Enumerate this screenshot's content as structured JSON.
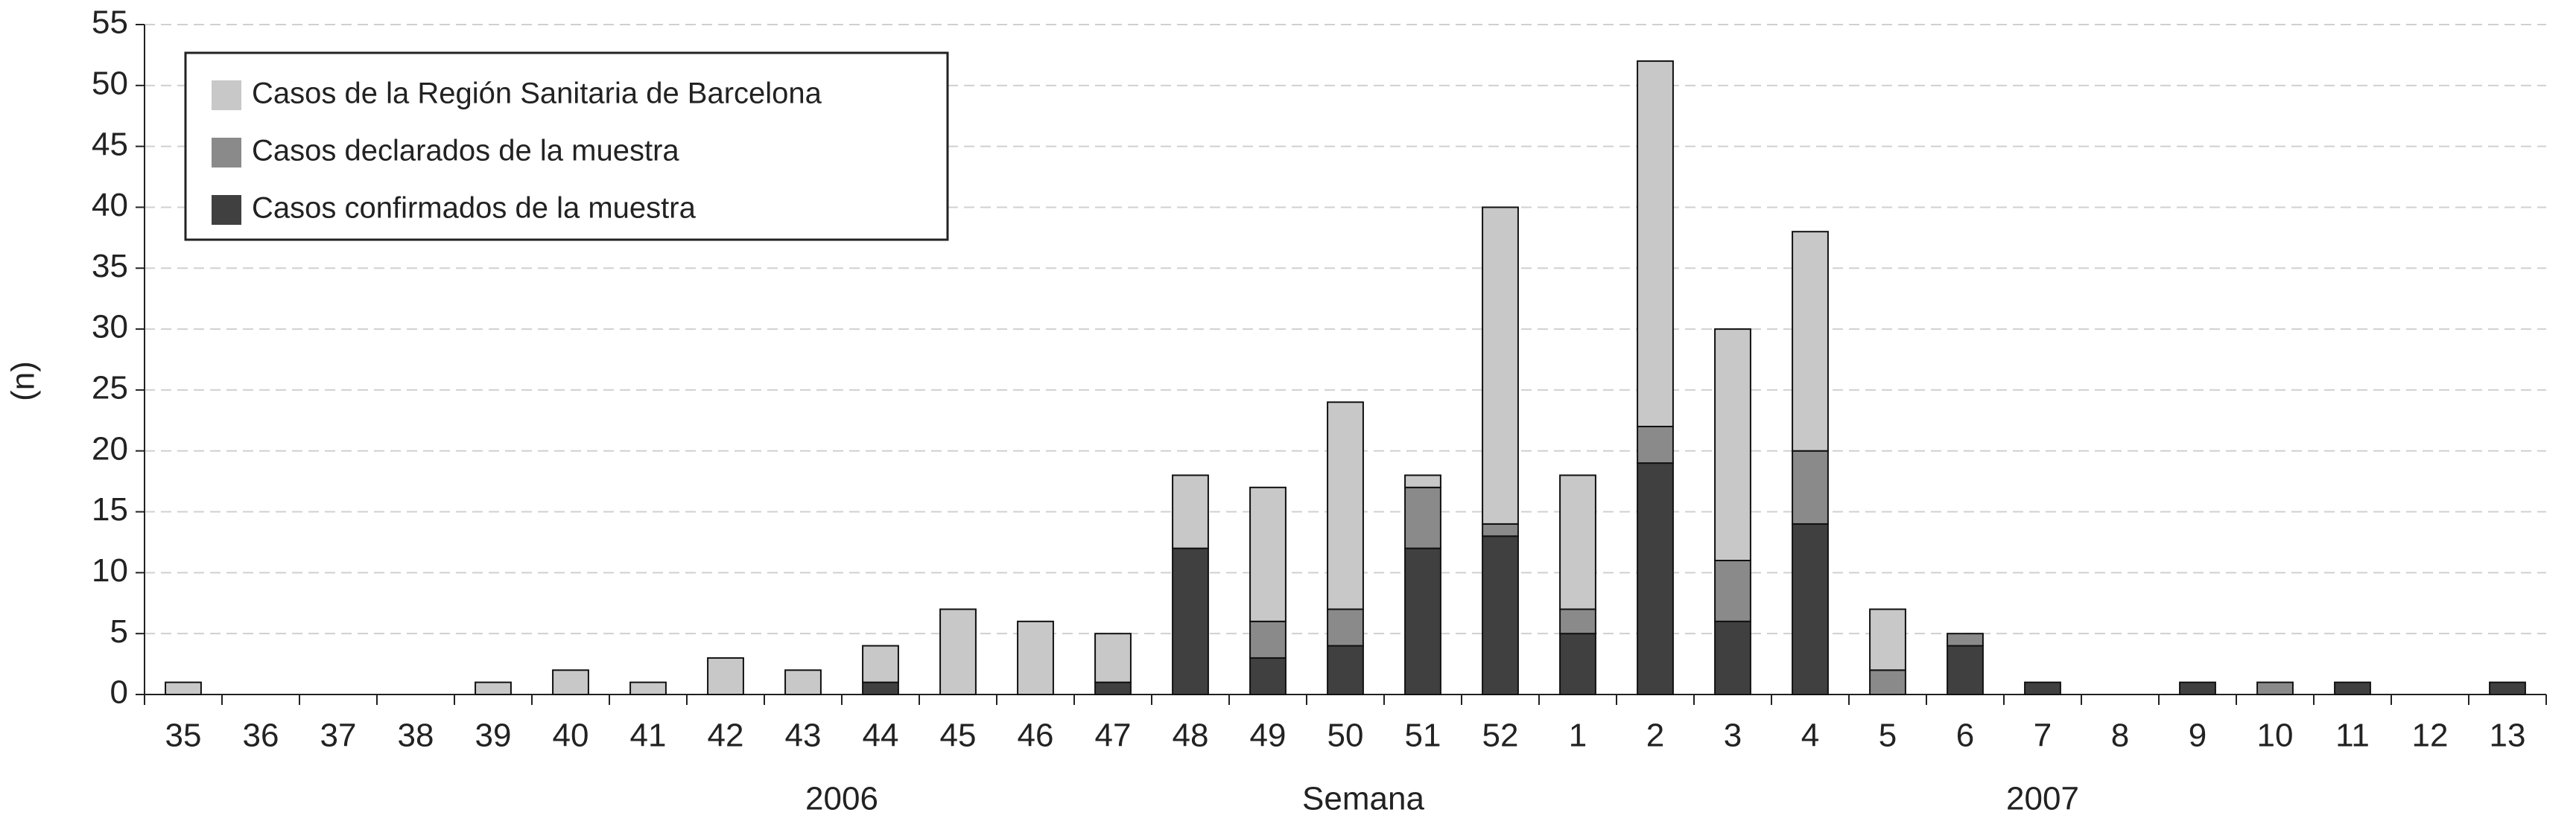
{
  "chart_data": {
    "type": "stacked_bar",
    "y_label": "(n)",
    "x_label": "Semana",
    "annotations": [
      "2006",
      "2007"
    ],
    "categories": [
      "35",
      "36",
      "37",
      "38",
      "39",
      "40",
      "41",
      "42",
      "43",
      "44",
      "45",
      "46",
      "47",
      "48",
      "49",
      "50",
      "51",
      "52",
      "1",
      "2",
      "3",
      "4",
      "5",
      "6",
      "7",
      "8",
      "9",
      "10",
      "11",
      "12",
      "13"
    ],
    "series": [
      {
        "name": "Casos de la Región Sanitaria de Barcelona",
        "color": "#c8c8c8",
        "values": [
          1,
          0,
          0,
          0,
          1,
          2,
          1,
          3,
          2,
          3,
          7,
          6,
          4,
          6,
          11,
          17,
          1,
          26,
          11,
          30,
          19,
          18,
          5,
          0,
          0,
          0,
          0,
          0,
          0,
          0,
          0
        ]
      },
      {
        "name": "Casos declarados de la muestra",
        "color": "#8a8a8a",
        "values": [
          0,
          0,
          0,
          0,
          0,
          0,
          0,
          0,
          0,
          0,
          0,
          0,
          0,
          0,
          3,
          3,
          5,
          1,
          2,
          3,
          5,
          6,
          2,
          1,
          0,
          0,
          0,
          1,
          0,
          0,
          0
        ]
      },
      {
        "name": "Casos confirmados de la muestra",
        "color": "#404040",
        "values": [
          0,
          0,
          0,
          0,
          0,
          0,
          0,
          0,
          0,
          1,
          0,
          0,
          1,
          12,
          3,
          4,
          12,
          13,
          5,
          19,
          6,
          14,
          0,
          4,
          1,
          0,
          1,
          0,
          1,
          0,
          1
        ]
      }
    ],
    "ylim": [
      0,
      55
    ],
    "yticks": [
      0,
      5,
      10,
      15,
      20,
      25,
      30,
      35,
      40,
      45,
      50,
      55
    ],
    "grid": true,
    "legend": "upper left"
  }
}
